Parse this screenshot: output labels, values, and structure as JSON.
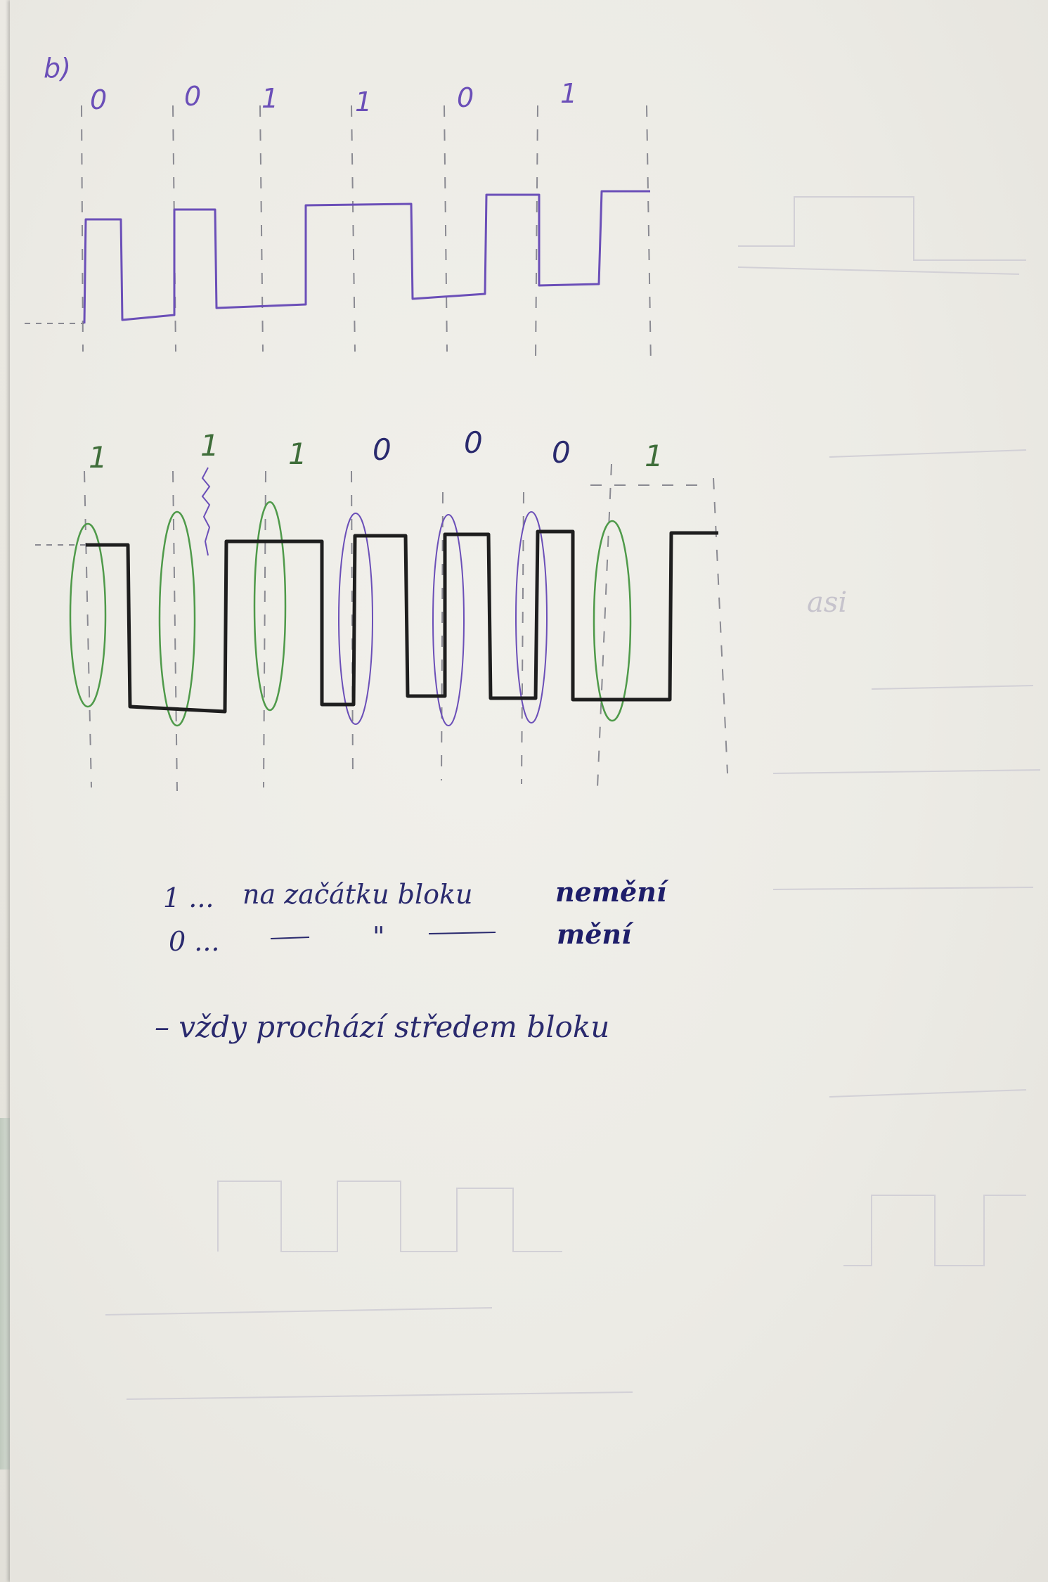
{
  "section_label": "b)",
  "diagram1": {
    "bits": [
      "0",
      "0",
      "1",
      "1",
      "0",
      "1"
    ]
  },
  "diagram2": {
    "bits": [
      "1",
      "1",
      "1",
      "0",
      "0",
      "0",
      "1"
    ]
  },
  "notes": {
    "line1_prefix": "1 ...",
    "line1_text": "na začátku bloku",
    "line1_emph": "nemění",
    "line2_prefix": "0 ...",
    "line2_ditto": "\"",
    "line2_emph": "mění",
    "line3_text": "– vždy prochází středem bloku"
  },
  "faint_text": {
    "margin_word": "asi"
  },
  "colors": {
    "ink_violet": "#6b4fb8",
    "ink_black": "#1e1e1e",
    "ink_navy": "#2a2a6e",
    "ink_green": "#4f9a4a",
    "guide_gray": "#8a8a92",
    "faint": "#c9c6cf"
  }
}
